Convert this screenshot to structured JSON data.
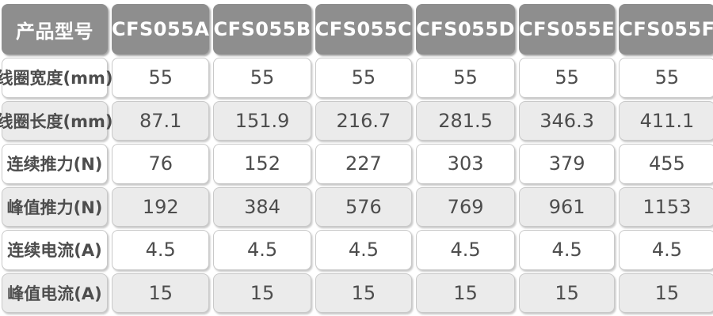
{
  "colors": {
    "header_bg": "#8e8e8e",
    "header_text": "#ffffff",
    "row_bg": "#ffffff",
    "row_alt_bg": "#ebebeb",
    "cell_text": "#4d4d4d",
    "cell_border": "#c9c9c9"
  },
  "table": {
    "header": {
      "label": "产品型号",
      "models": [
        "CFS055A",
        "CFS055B",
        "CFS055C",
        "CFS055D",
        "CFS055E",
        "CFS055F"
      ]
    },
    "rows": [
      {
        "label": "线圈宽度(mm)",
        "values": [
          "55",
          "55",
          "55",
          "55",
          "55",
          "55"
        ]
      },
      {
        "label": "线圈长度(mm)",
        "values": [
          "87.1",
          "151.9",
          "216.7",
          "281.5",
          "346.3",
          "411.1"
        ]
      },
      {
        "label": "连续推力(N)",
        "values": [
          "76",
          "152",
          "227",
          "303",
          "379",
          "455"
        ]
      },
      {
        "label": "峰值推力(N)",
        "values": [
          "192",
          "384",
          "576",
          "769",
          "961",
          "1153"
        ]
      },
      {
        "label": "连续电流(A)",
        "values": [
          "4.5",
          "4.5",
          "4.5",
          "4.5",
          "4.5",
          "4.5"
        ]
      },
      {
        "label": "峰值电流(A)",
        "values": [
          "15",
          "15",
          "15",
          "15",
          "15",
          "15"
        ]
      }
    ]
  }
}
